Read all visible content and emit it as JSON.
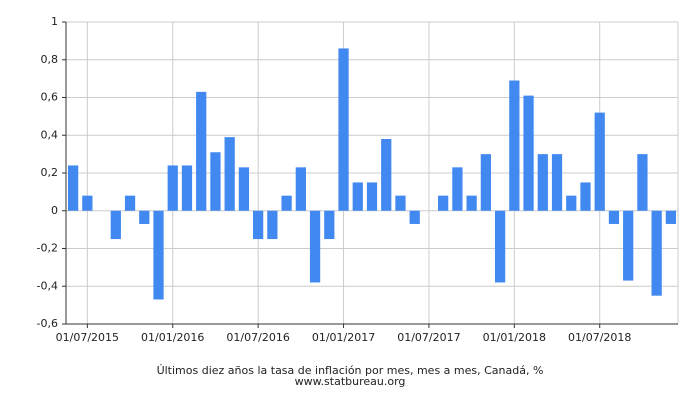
{
  "chart_data": {
    "type": "bar",
    "footer": "Últimos diez años la tasa de inflación por mes, mes a mes, Canadá, %",
    "source": "www.statbureau.org",
    "color": "#4189f0",
    "x": [
      "01/06/2015",
      "01/07/2015",
      "01/08/2015",
      "01/09/2015",
      "01/10/2015",
      "01/11/2015",
      "01/12/2015",
      "01/01/2016",
      "01/02/2016",
      "01/03/2016",
      "01/04/2016",
      "01/05/2016",
      "01/06/2016",
      "01/07/2016",
      "01/08/2016",
      "01/09/2016",
      "01/10/2016",
      "01/11/2016",
      "01/12/2016",
      "01/01/2017",
      "01/02/2017",
      "01/03/2017",
      "01/04/2017",
      "01/05/2017",
      "01/06/2017",
      "01/07/2017",
      "01/08/2017",
      "01/09/2017",
      "01/10/2017",
      "01/11/2017",
      "01/12/2017",
      "01/01/2018",
      "01/02/2018",
      "01/03/2018",
      "01/04/2018",
      "01/05/2018",
      "01/06/2018",
      "01/07/2018",
      "01/08/2018",
      "01/09/2018",
      "01/10/2018",
      "01/11/2018",
      "01/12/2018"
    ],
    "values": [
      0.24,
      0.08,
      0,
      -0.15,
      0.08,
      -0.07,
      -0.47,
      0.24,
      0.24,
      0.63,
      0.31,
      0.39,
      0.23,
      -0.15,
      -0.15,
      0.08,
      0.23,
      -0.38,
      -0.15,
      0.86,
      0.15,
      0.15,
      0.38,
      0.08,
      -0.07,
      0,
      0.08,
      0.23,
      0.08,
      0.3,
      -0.38,
      0.69,
      0.61,
      0.3,
      0.3,
      0.08,
      0.15,
      0.52,
      -0.07,
      -0.37,
      0.3,
      -0.45,
      -0.07
    ],
    "xticks": [
      "01/07/2015",
      "01/01/2016",
      "01/07/2016",
      "01/01/2017",
      "01/07/2017",
      "01/01/2018",
      "01/07/2018"
    ],
    "ylim": [
      -0.6,
      1
    ],
    "yticks": [
      {
        "value": -0.6,
        "label": "-0,6"
      },
      {
        "value": -0.4,
        "label": "-0,4"
      },
      {
        "value": -0.2,
        "label": "-0,2"
      },
      0,
      {
        "value": 0.2,
        "label": "0,2"
      },
      {
        "value": 0.4,
        "label": "0,4"
      },
      {
        "value": 0.6,
        "label": "0,6"
      },
      {
        "value": 0.8,
        "label": "0,8"
      },
      1
    ],
    "grid": true
  }
}
